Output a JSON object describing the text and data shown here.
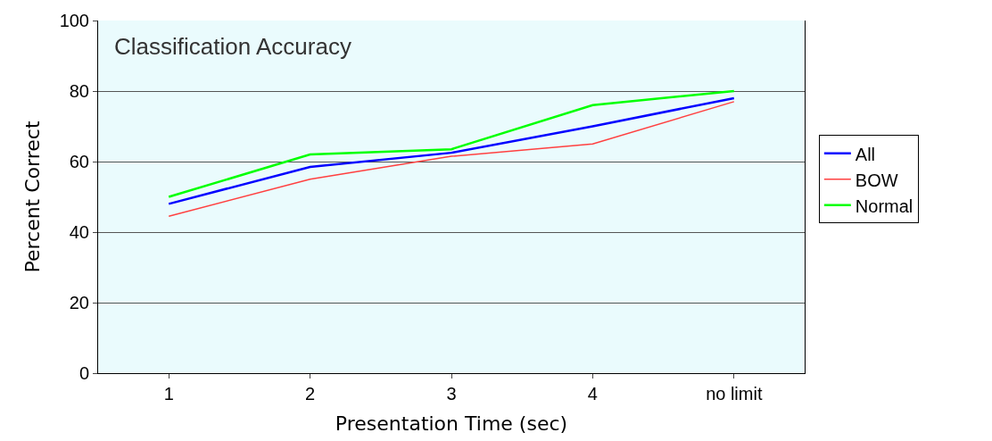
{
  "chart_data": {
    "type": "line",
    "title": "Classification Accuracy",
    "xlabel": "Presentation Time (sec)",
    "ylabel": "Percent Correct",
    "categories": [
      "1",
      "2",
      "3",
      "4",
      "no limit"
    ],
    "series": [
      {
        "name": "All",
        "color": "#0000ff",
        "values": [
          48,
          58.5,
          62.5,
          70,
          78
        ]
      },
      {
        "name": "BOW",
        "color": "#ff4040",
        "values": [
          44.5,
          55,
          61.5,
          65,
          77
        ]
      },
      {
        "name": "Normal",
        "color": "#00ff00",
        "values": [
          50,
          62,
          63.5,
          76,
          80
        ]
      }
    ],
    "ylim": [
      0,
      100
    ],
    "yticks": [
      0,
      20,
      40,
      60,
      80,
      100
    ],
    "grid": "y",
    "legend": "right",
    "marker": "none",
    "line_style": "solid"
  }
}
